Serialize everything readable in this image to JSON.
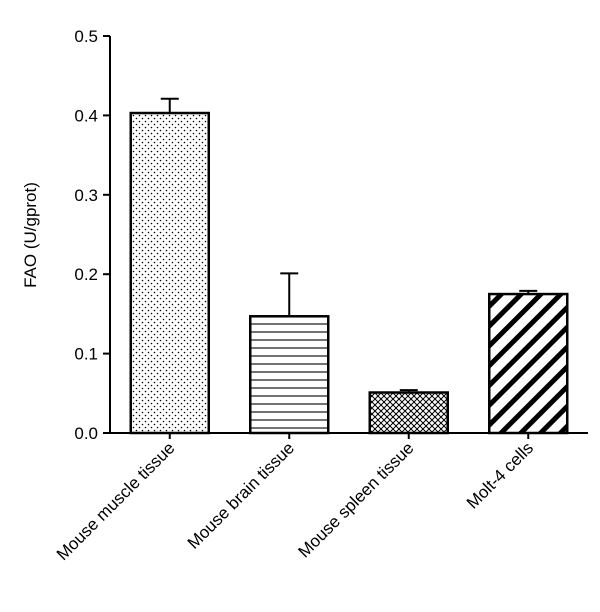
{
  "chart_data": {
    "type": "bar",
    "title": "",
    "xlabel": "",
    "ylabel": "FAO (U/gprot)",
    "ylim": [
      0,
      0.5
    ],
    "yticks": [
      "0.0",
      "0.1",
      "0.2",
      "0.3",
      "0.4",
      "0.5"
    ],
    "categories": [
      "Mouse muscle tissue",
      "Mouse brain tissue",
      "Mouse spleen tissue",
      "Molt-4 cells"
    ],
    "values": [
      0.403,
      0.147,
      0.051,
      0.175
    ],
    "error_upper": [
      0.018,
      0.054,
      0.003,
      0.004
    ],
    "patterns": [
      "dots",
      "horizontal-lines",
      "crosshatch",
      "diagonal-stripes"
    ],
    "bar_fill": "#ffffff",
    "bar_stroke": "#000000",
    "grid": false,
    "legend": "none"
  }
}
